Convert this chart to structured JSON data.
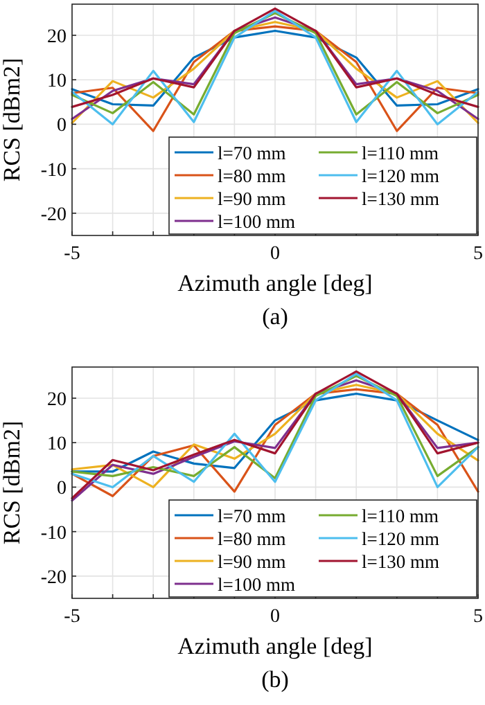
{
  "chart_data": [
    {
      "type": "line",
      "xlabel": "Azimuth angle [deg]",
      "ylabel": "RCS [dBm2]",
      "annotations": [
        "(a)"
      ],
      "x": [
        -5,
        -4,
        -3,
        -2,
        -1,
        0,
        1,
        2,
        3,
        4,
        5
      ],
      "xlim": [
        -5,
        5
      ],
      "ylim": [
        -25,
        27
      ],
      "xticks": [
        -5,
        {
          "value": -4,
          "label": null
        },
        {
          "value": -3,
          "label": null
        },
        {
          "value": -2,
          "label": null
        },
        {
          "value": -1,
          "label": null
        },
        0,
        {
          "value": 1,
          "label": null
        },
        {
          "value": 2,
          "label": null
        },
        {
          "value": 3,
          "label": null
        },
        {
          "value": 4,
          "label": null
        },
        5
      ],
      "yticks": [
        -20,
        -10,
        0,
        10,
        20
      ],
      "grid": true,
      "legend": "bottom right",
      "line_style": "solid",
      "series": [
        {
          "name": "l=70 mm",
          "color": "#0072bd",
          "values": [
            7.9,
            4.5,
            4.2,
            15,
            19.5,
            21,
            19.5,
            15,
            4.2,
            4.5,
            7.9
          ]
        },
        {
          "name": "l=80 mm",
          "color": "#d95319",
          "values": [
            7,
            8.2,
            -1.5,
            14,
            21,
            22,
            21,
            14,
            -1.5,
            8.2,
            7
          ]
        },
        {
          "name": "l=90 mm",
          "color": "#edb120",
          "values": [
            0.3,
            9.7,
            6,
            12.5,
            21,
            23,
            21,
            12.5,
            6,
            9.7,
            0.3
          ]
        },
        {
          "name": "l=100 mm",
          "color": "#7e2f8e",
          "values": [
            1.2,
            7.5,
            10.3,
            9,
            21,
            24,
            21,
            9,
            10.3,
            7.5,
            1.2
          ]
        },
        {
          "name": "l=110 mm",
          "color": "#77ac30",
          "values": [
            6.6,
            2.5,
            9.5,
            2.2,
            20.5,
            25,
            20.5,
            2.2,
            9.5,
            2.5,
            6.6
          ]
        },
        {
          "name": "l=120 mm",
          "color": "#4dbeee",
          "values": [
            7.3,
            0,
            12,
            0.5,
            19.5,
            25.5,
            19.5,
            0.5,
            12,
            0,
            7.3
          ]
        },
        {
          "name": "l=130 mm",
          "color": "#a2142f",
          "values": [
            3.9,
            6.6,
            10.3,
            8.3,
            21,
            26,
            21,
            8.3,
            10.3,
            6.6,
            3.9
          ]
        }
      ]
    },
    {
      "type": "line",
      "xlabel": "Azimuth angle [deg]",
      "ylabel": "RCS [dBm2]",
      "annotations": [
        "(b)"
      ],
      "x": [
        -5,
        -4,
        -3,
        -2,
        -1,
        0,
        1,
        2,
        3,
        4,
        5
      ],
      "xlim": [
        -5,
        5
      ],
      "ylim": [
        -25,
        27
      ],
      "xticks": [
        -5,
        {
          "value": -4,
          "label": null
        },
        {
          "value": -3,
          "label": null
        },
        {
          "value": -2,
          "label": null
        },
        {
          "value": -1,
          "label": null
        },
        0,
        {
          "value": 1,
          "label": null
        },
        {
          "value": 2,
          "label": null
        },
        {
          "value": 3,
          "label": null
        },
        {
          "value": 4,
          "label": null
        },
        5
      ],
      "yticks": [
        -20,
        -10,
        0,
        10,
        20
      ],
      "grid": true,
      "legend": "bottom right",
      "line_style": "solid",
      "series": [
        {
          "name": "l=70 mm",
          "color": "#0072bd",
          "values": [
            3.5,
            3.5,
            8,
            5.3,
            4.3,
            15,
            19.5,
            21,
            19.5,
            15,
            10.6
          ]
        },
        {
          "name": "l=80 mm",
          "color": "#d95319",
          "values": [
            3,
            -2,
            7,
            9.4,
            -1,
            14,
            21,
            22,
            21,
            14,
            -1
          ]
        },
        {
          "name": "l=90 mm",
          "color": "#edb120",
          "values": [
            4,
            5,
            0,
            9.6,
            6.4,
            12,
            21,
            23,
            21,
            12,
            6
          ]
        },
        {
          "name": "l=100 mm",
          "color": "#7e2f8e",
          "values": [
            -3,
            5,
            3,
            6.8,
            10.3,
            8.8,
            21,
            24,
            21,
            8.8,
            10
          ]
        },
        {
          "name": "l=110 mm",
          "color": "#77ac30",
          "values": [
            3.5,
            2.5,
            4.5,
            2.5,
            9,
            2,
            20.5,
            25,
            20.5,
            2.5,
            9
          ]
        },
        {
          "name": "l=120 mm",
          "color": "#4dbeee",
          "values": [
            3,
            0,
            7,
            1.2,
            12,
            1.2,
            19.5,
            25.5,
            19.5,
            0,
            9
          ]
        },
        {
          "name": "l=130 mm",
          "color": "#a2142f",
          "values": [
            -2.5,
            6.1,
            3.8,
            7.3,
            10.6,
            7.6,
            21,
            26,
            21,
            7.6,
            10
          ]
        }
      ]
    }
  ]
}
